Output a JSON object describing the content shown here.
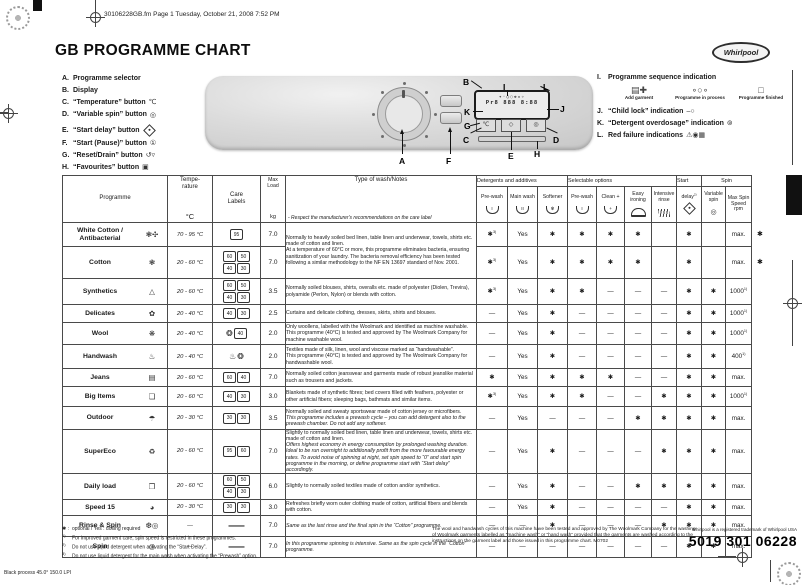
{
  "page": {
    "header_line": "30106228GB.fm  Page 1  Tuesday, October 21, 2008  7:52 PM",
    "title": "GB PROGRAMME CHART",
    "brand": "Whirlpool",
    "trademark": "Whirlpool is a registered trademark of Whirlpool USA",
    "part_number": "5019 301 06228",
    "print_info": "Black process 45.0°  150.0 LPI"
  },
  "legend_left": {
    "items": [
      {
        "key": "A.",
        "label": "Programme selector",
        "icon": ""
      },
      {
        "key": "B.",
        "label": "Display",
        "icon": ""
      },
      {
        "key": "C.",
        "label": "“Temperature” button",
        "icon": "thermo"
      },
      {
        "key": "D.",
        "label": "“Variable spin” button",
        "icon": "spiral"
      },
      {
        "key": "E.",
        "label": "“Start delay” button",
        "icon": "clock",
        "gap": true
      },
      {
        "key": "F.",
        "label": "“Start (Pause)” button",
        "icon": "start"
      },
      {
        "key": "G.",
        "label": "“Reset/Drain” button",
        "icon": "resetdrain"
      },
      {
        "key": "H.",
        "label": "“Favourites” button",
        "icon": "fav"
      }
    ]
  },
  "legend_right": {
    "seq_key": "I.",
    "seq_label": "Programme sequence indication",
    "sequence": [
      {
        "label": "Add garment",
        "glyph": "▤✚",
        "icon": "add-garment-icon"
      },
      {
        "label": "Programme in process",
        "glyph": "∘○∘",
        "icon": "programme-in-process-icon"
      },
      {
        "label": "Programme finished",
        "glyph": "□",
        "icon": "programme-finished-icon"
      }
    ],
    "items": [
      {
        "key": "J.",
        "label": "“Child lock” indication",
        "icon": "childlock"
      },
      {
        "key": "K.",
        "label": "“Detergent overdosage” indication",
        "icon": "overdose"
      },
      {
        "key": "L.",
        "label": "Red failure indications",
        "icon": "failures"
      }
    ]
  },
  "panel": {
    "callouts": [
      "A",
      "B",
      "C",
      "D",
      "E",
      "F",
      "G",
      "H",
      "I",
      "J",
      "K",
      "L"
    ],
    "display": [
      "✦◦○◌❋▫✧",
      "Pr8 888 8:88"
    ],
    "buttons": [
      "℃",
      "◇",
      "◎"
    ]
  },
  "table": {
    "headers": {
      "programme": "Programme",
      "temp1": "Tempe-",
      "temp2": "rature",
      "temp_unit": "°C",
      "care1": "Care",
      "care2": "Labels",
      "load1": "Max",
      "load2": "Load",
      "load_unit": "kg",
      "notes_title": "Type of wash/Notes",
      "notes_sub": "- Respect the manufacturer's recommendations on the care label"
    },
    "groups": [
      {
        "label": "Detergents and additives",
        "span": 3
      },
      {
        "label": "Selectable options",
        "span": 4
      },
      {
        "label": "Start",
        "span": 1
      },
      {
        "label": "Spin",
        "span": 2
      }
    ],
    "option_cols": [
      {
        "label": "Pre-wash",
        "icon": "cup1"
      },
      {
        "label": "Main wash",
        "icon": "cup2"
      },
      {
        "label": "Softener",
        "icon": "softener"
      },
      {
        "label": "Pre-wash",
        "icon": "cup1"
      },
      {
        "label": "Clean +",
        "icon": "clean"
      },
      {
        "label": "Easy ironing",
        "icon": "iron"
      },
      {
        "label": "Intensive rinse",
        "icon": "rinse"
      },
      {
        "label": "delay 2)",
        "icon": "clock"
      },
      {
        "label": "Variable spin",
        "icon": "spiral"
      },
      {
        "label": "Max Spin Speed rpm",
        "icon": ""
      }
    ],
    "rows": [
      {
        "name": "White Cotton / Antibacterial",
        "icon": "❃✣",
        "temp": "70 - 95 °C",
        "care": [
          "95"
        ],
        "load": "7.0",
        "notes": [
          {
            "t": "Normally to heavily soiled bed linen, table linen and underwear, towels, shirts etc. made of cotton and linen.",
            "i": false
          },
          {
            "t": "At a temperature of 60°C or more, this programme eliminates bacteria, ensuring sanitization of your laundry. The bacteria removal efficiency has been tested following a similar methodology to the NF EN 13697 standard of Nov. 2001.",
            "i": false
          }
        ],
        "notes_span": 2,
        "vals": [
          "✱ 3)",
          "Yes",
          "✱",
          "✱",
          "✱",
          "✱",
          "",
          "✱",
          "",
          "max."
        ],
        "margin_star": true
      },
      {
        "name": "Cotton",
        "icon": "❃",
        "temp": "20 - 60 °C",
        "care": [
          "60",
          "50",
          "40",
          "30"
        ],
        "load": "7.0",
        "notes": null,
        "vals": [
          "✱ 3)",
          "Yes",
          "✱",
          "✱",
          "✱",
          "✱",
          "",
          "✱",
          "",
          "max."
        ],
        "margin_star": true
      },
      {
        "name": "Synthetics",
        "icon": "△",
        "temp": "20 - 60 °C",
        "care": [
          "60",
          "50",
          "40",
          "30"
        ],
        "load": "3.5",
        "notes": [
          {
            "t": "Normally soiled blouses, shirts, overalls etc. made of polyester (Diolen, Trevira), polyamide (Perlon, Nylon) or blends with cotton.",
            "i": false
          }
        ],
        "vals": [
          "✱ 3)",
          "Yes",
          "✱",
          "✱",
          "—",
          "—",
          "—",
          "✱",
          "✱",
          "1000 1)"
        ]
      },
      {
        "name": "Delicates",
        "icon": "✿",
        "temp": "20 - 40 °C",
        "care": [
          "40",
          "30"
        ],
        "load": "2.5",
        "notes": [
          {
            "t": "Curtains and delicate clothing, dresses, skirts, shirts and blouses.",
            "i": false
          }
        ],
        "vals": [
          "—",
          "Yes",
          "✱",
          "—",
          "—",
          "—",
          "—",
          "✱",
          "✱",
          "1000 1)"
        ]
      },
      {
        "name": "Wool",
        "icon": "❋",
        "temp": "20 - 40 °C",
        "care": [
          "WM",
          "40"
        ],
        "load": "2.0",
        "notes": [
          {
            "t": "Only woollens, labelled with the Woolmark and identified as machine washable.",
            "i": false
          },
          {
            "t": "This programme (40°C) is tested and approved by The Woolmark Company for machine washable wool.",
            "i": false
          }
        ],
        "vals": [
          "—",
          "Yes",
          "✱",
          "—",
          "—",
          "—",
          "—",
          "✱",
          "✱",
          "1000 1)"
        ]
      },
      {
        "name": "Handwash",
        "icon": "♨",
        "temp": "20 - 40 °C",
        "care": [
          "HW",
          "WM"
        ],
        "load": "2.0",
        "notes": [
          {
            "t": "Textiles made of silk, linen, wool and viscose marked as “handwashable”.",
            "i": false
          },
          {
            "t": "This programme (40°C) is tested and approved by The Woolmark Company for handwashable wool.",
            "i": false
          }
        ],
        "vals": [
          "—",
          "Yes",
          "✱",
          "—",
          "—",
          "—",
          "—",
          "✱",
          "✱",
          "400 1)"
        ]
      },
      {
        "name": "Jeans",
        "icon": "▤",
        "temp": "20 - 60 °C",
        "care": [
          "60",
          "40"
        ],
        "load": "7.0",
        "notes": [
          {
            "t": "Normally soiled cotton jeanswear and garments made of robust jeanslike material such as trousers and jackets.",
            "i": false
          }
        ],
        "vals": [
          "✱",
          "Yes",
          "✱",
          "✱",
          "✱",
          "—",
          "—",
          "✱",
          "✱",
          "max."
        ]
      },
      {
        "name": "Big Items",
        "icon": "❏",
        "temp": "20 - 60 °C",
        "care": [
          "40",
          "30"
        ],
        "load": "3.0",
        "notes": [
          {
            "t": "Blankets made of synthetic fibres; bed covers filled with feathers, polyester or other artificial fibers; sleeping bags, bathmats and similar items.",
            "i": false
          }
        ],
        "vals": [
          "✱ 3)",
          "Yes",
          "✱",
          "✱",
          "—",
          "—",
          "✱",
          "✱",
          "✱",
          "1000 1)"
        ]
      },
      {
        "name": "Outdoor",
        "icon": "☂",
        "temp": "20 - 30 °C",
        "care": [
          "30",
          "30"
        ],
        "load": "3.5",
        "notes": [
          {
            "t": "Normally soiled and sweaty sportswear made of cotton jersey or microfibers.",
            "i": false
          },
          {
            "t": "This programme includes a prewash cycle – you can add detergent also to the prewash chamber. Do not add any softener.",
            "i": true
          }
        ],
        "vals": [
          "—",
          "Yes",
          "—",
          "—",
          "—",
          "✱",
          "✱",
          "✱",
          "✱",
          "max."
        ]
      },
      {
        "name": "SuperEco",
        "icon": "♻",
        "temp": "20 - 60 °C",
        "care": [
          "95",
          "60"
        ],
        "load": "7.0",
        "notes": [
          {
            "t": "Slightly to normally soiled bed linen, table linen and underwear, towels, shirts etc. made of cotton and linen.",
            "i": false
          },
          {
            "t": "Offers highest economy in energy consumption by prolonged washing duration. Ideal to be run overnight to additionally profit from the more favourable energy rates. To avoid noise of spinning at night, set spin speed to “0” and start spin programme in the morning, or define programme start with “Start delay” accordingly.",
            "i": true
          }
        ],
        "vals": [
          "—",
          "Yes",
          "✱",
          "—",
          "—",
          "—",
          "✱",
          "✱",
          "✱",
          "max."
        ]
      },
      {
        "name": "Daily load",
        "icon": "❒",
        "temp": "20 - 60 °C",
        "care": [
          "60",
          "50",
          "40",
          "30"
        ],
        "load": "6.0",
        "notes": [
          {
            "t": "Slightly to normally soiled textiles made of cotton and/or synthetics.",
            "i": false
          }
        ],
        "vals": [
          "—",
          "Yes",
          "✱",
          "—",
          "—",
          "✱",
          "✱",
          "✱",
          "✱",
          "max."
        ]
      },
      {
        "name": "Speed 15",
        "icon": "◕",
        "temp": "20 - 30 °C",
        "care": [
          "30",
          "30"
        ],
        "load": "3.0",
        "notes": [
          {
            "t": "Refreshes briefly worn outer clothing made of cotton, artificial fibers and blends with cotton.",
            "i": false
          }
        ],
        "vals": [
          "—",
          "Yes",
          "✱",
          "—",
          "—",
          "—",
          "—",
          "✱",
          "✱",
          "max."
        ]
      },
      {
        "name": "Rinse & Spin",
        "icon": "❆◎",
        "temp": "—",
        "care": [],
        "load": "7.0",
        "notes": [
          {
            "t": "Same as the last rinse and the final spin in the “Cotton” programme.",
            "i": true
          }
        ],
        "vals": [
          "—",
          "—",
          "✱",
          "—",
          "—",
          "—",
          "✱",
          "✱",
          "✱",
          "max."
        ]
      },
      {
        "name": "Spin",
        "icon": "◎",
        "temp": "—",
        "care": [],
        "load": "7.0",
        "notes": [
          {
            "t": "In this programme spinning is intensive. Same as the spin cycle in the “Cotton” programme.",
            "i": true
          }
        ],
        "vals": [
          "—",
          "—",
          "—",
          "—",
          "—",
          "—",
          "—",
          "✱",
          "✱",
          "max."
        ]
      }
    ]
  },
  "footnotes": {
    "lines": [
      {
        "m": "✱ :",
        "t": "optional / Yes : dosing required"
      },
      {
        "m": "1)",
        "t": "For improved garment care, spin speed is restricted in these programmes."
      },
      {
        "m": "2)",
        "t": "Do not use liquid detergent when activating the “Start Delay”."
      },
      {
        "m": "3)",
        "t": "Do not use liquid detergent for the main wash when activating the “Prewash” option."
      }
    ],
    "woolmark_note": "The wool and handwash cycles of this machine have been tested and approved by The Woolmark Company for the washing of Woolmark garments labelled as “machine wash” or “hand wash” provided that the garments are washed according to the instructions on the garment label and those issued in this programme chart.  M0702"
  }
}
